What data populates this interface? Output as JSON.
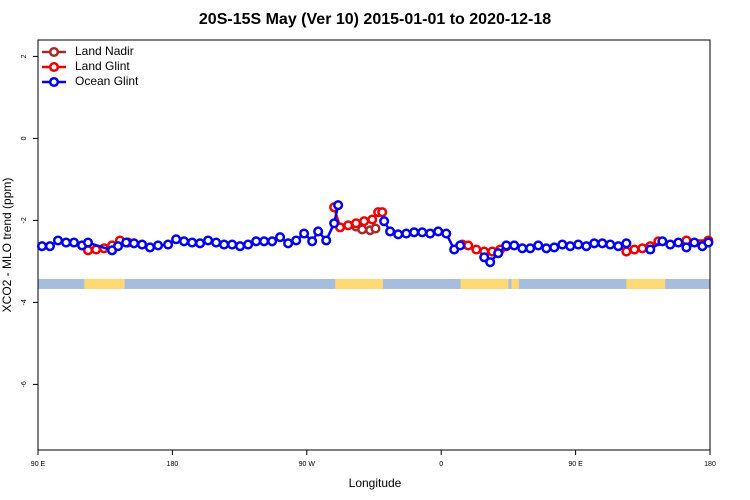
{
  "chart_data": {
    "type": "line",
    "title": "20S-15S May (Ver 10)   2015-01-01 to 2020-12-18",
    "x_label": "Longitude",
    "y_label": "XCO2 - MLO trend (ppm)",
    "xlim": [
      90,
      540
    ],
    "ylim": [
      -7.6,
      2.4
    ],
    "xticks": [
      {
        "value": 90,
        "label": "90 E"
      },
      {
        "value": 180,
        "label": "180"
      },
      {
        "value": 270,
        "label": "90 W"
      },
      {
        "value": 360,
        "label": "0"
      },
      {
        "value": 450,
        "label": "90 E"
      },
      {
        "value": 540,
        "label": "180"
      }
    ],
    "yticks": [
      2,
      0,
      -2,
      -4,
      -6
    ],
    "legend": "top-left",
    "mask": {
      "y": -3.55,
      "ocean_color": "#a6bddb",
      "land_color": "#fed976",
      "land": [
        [
          121,
          148
        ],
        [
          289,
          321
        ],
        [
          373,
          405
        ],
        [
          407,
          412
        ],
        [
          484,
          510
        ]
      ]
    },
    "series": [
      {
        "name": "Land Nadir",
        "color": "#a52a2a",
        "x": [
          303,
          307.1,
          312.4,
          316
        ],
        "values": [
          -2.15,
          -2.22,
          -2.24,
          -2.2
        ]
      },
      {
        "name": "Land Glint",
        "color": "#ee0000",
        "x": [
          123.5,
          128.9,
          134.2,
          139.6,
          144.9,
          150.3,
          null,
          288.3,
          292.3,
          297.7,
          303,
          308.4,
          313.8,
          317.8,
          320.5,
          null,
          374.1,
          378.1,
          383.5,
          388.8,
          394.2,
          399.5,
          403.6,
          null,
          484,
          489.4,
          494.7,
          500,
          505.4,
          null,
          524.2,
          538.9
        ],
        "values": [
          -2.73,
          -2.71,
          -2.68,
          -2.61,
          -2.49,
          -2.54,
          null,
          -1.68,
          -2.17,
          -2.12,
          -2.07,
          -2.02,
          -1.98,
          -1.8,
          -1.8,
          null,
          -2.59,
          -2.61,
          -2.71,
          -2.76,
          -2.76,
          -2.71,
          -2.63,
          null,
          -2.76,
          -2.71,
          -2.68,
          -2.63,
          -2.51,
          null,
          -2.49,
          -2.49
        ]
      },
      {
        "name": "Ocean Glint",
        "color": "#0000ee",
        "x": [
          92.7,
          98,
          103.4,
          108.8,
          114.1,
          119.5,
          123.5,
          139.6,
          143.6,
          149,
          154.3,
          159.7,
          165,
          170.4,
          177.1,
          182.5,
          187.8,
          193.2,
          198.5,
          203.9,
          209.3,
          214.6,
          220,
          225.3,
          230.7,
          236.1,
          241.4,
          246.8,
          252.1,
          257.5,
          262.9,
          268.2,
          273.6,
          277.6,
          283,
          288.3,
          291,
          null,
          321.8,
          325.8,
          331.2,
          336.6,
          341.9,
          347.3,
          352.6,
          358,
          363.4,
          368.7,
          372.7,
          null,
          388.8,
          392.8,
          398.2,
          403.6,
          408.9,
          414.3,
          419.6,
          425,
          430.4,
          435.7,
          441.1,
          446.4,
          451.8,
          457.2,
          462.5,
          467.9,
          473.2,
          478.6,
          484,
          null,
          500,
          508.1,
          513.4,
          518.8,
          524.2,
          529.5,
          534.9,
          538.9
        ],
        "values": [
          -2.63,
          -2.63,
          -2.49,
          -2.54,
          -2.54,
          -2.61,
          -2.54,
          -2.73,
          -2.63,
          -2.54,
          -2.56,
          -2.59,
          -2.66,
          -2.61,
          -2.59,
          -2.46,
          -2.51,
          -2.54,
          -2.56,
          -2.49,
          -2.54,
          -2.59,
          -2.59,
          -2.63,
          -2.59,
          -2.51,
          -2.51,
          -2.51,
          -2.41,
          -2.56,
          -2.49,
          -2.32,
          -2.51,
          -2.27,
          -2.49,
          -2.07,
          -1.63,
          null,
          -2.02,
          -2.27,
          -2.34,
          -2.32,
          -2.29,
          -2.29,
          -2.32,
          -2.27,
          -2.32,
          -2.71,
          -2.61,
          null,
          -2.9,
          -3.02,
          -2.8,
          -2.61,
          -2.61,
          -2.68,
          -2.68,
          -2.61,
          -2.68,
          -2.66,
          -2.59,
          -2.63,
          -2.59,
          -2.63,
          -2.56,
          -2.56,
          -2.59,
          -2.63,
          -2.56,
          null,
          -2.71,
          -2.51,
          -2.59,
          -2.54,
          -2.66,
          -2.54,
          -2.63,
          -2.54
        ]
      }
    ]
  }
}
